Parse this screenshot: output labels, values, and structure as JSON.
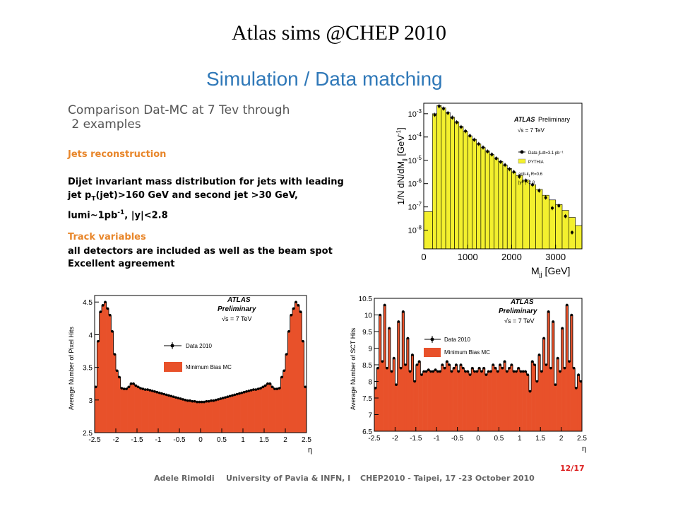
{
  "page_title": "Atlas sims @CHEP 2010",
  "slide": {
    "heading": "Simulation / Data matching",
    "intro_line1": "Comparison Dat-MC at 7 Tev through",
    "intro_line2": " 2 examples",
    "jets_title": "Jets reconstruction",
    "jets_line1": "Dijet invariant mass distribution for jets with leading",
    "jets_line2": "jet p",
    "jets_line2_sub": "T",
    "jets_line2_rest": "(jet)>160 GeV and second jet >30 GeV,",
    "jets_line3": "lumi~1pb",
    "jets_line3_sup": "-1",
    "jets_line3_rest": ", |y|<2.8",
    "track_title": "Track variables",
    "track_line1": "all detectors are included as well as the beam spot",
    "track_line2": "Excellent agreement"
  },
  "footer": {
    "author": "Adele Rimoldi",
    "affiliation": "University of Pavia & INFN, I",
    "event": "CHEP2010 - Taipei, 17 -23 October 2010",
    "page": "12/17"
  },
  "colors": {
    "heading": "#2f78b8",
    "orange_titles": "#e8862a",
    "yellow_fill": "#f3f02e",
    "red_fill": "#e8512a",
    "page_number": "#dd2222"
  },
  "chart_data": [
    {
      "type": "bar",
      "id": "mjj",
      "xlabel": "M",
      "xlabel_sub": "jj",
      "xlabel_unit": " [GeV]",
      "ylabel": "1/N dN/dM",
      "ylabel_sub": "jj",
      "ylabel_unit": " [GeV",
      "ylabel_sup": "-1",
      "ylabel_end": "]",
      "yscale": "log",
      "xlim": [
        0,
        3600
      ],
      "ylim_exp": [
        -8.8,
        -2.55
      ],
      "xticks": [
        0,
        1000,
        2000,
        3000
      ],
      "xtick_labels": [
        "0",
        "1000",
        "2000",
        "3000"
      ],
      "yticks": [
        -3,
        -4,
        -5,
        -6,
        -7,
        -8
      ],
      "ytick_base": "10",
      "ytick_exps": [
        "-3",
        "-4",
        "-5",
        "-6",
        "-7",
        "-8"
      ],
      "annotation_atlas": "ATLAS",
      "annotation_prelim": "Preliminary",
      "annotation_sqrt": "√s = 7 TeV",
      "legend": [
        "Data ∫Ldt=3.1 pb⁻¹",
        "PYTHIA"
      ],
      "annotation_jets": "anti-k",
      "annotation_jets_sub": "t",
      "annotation_jets_rest": " R=0.6",
      "annotation_y": "|y",
      "annotation_y_sup": "jet",
      "annotation_y_rest": "|<2.8",
      "bins_x": [
        0,
        200,
        300,
        400,
        500,
        600,
        700,
        800,
        900,
        1000,
        1100,
        1200,
        1300,
        1400,
        1500,
        1600,
        1700,
        1800,
        1900,
        2000,
        2100,
        2250,
        2400,
        2550,
        2700,
        2850,
        3000,
        3150,
        3300,
        3450,
        3600
      ],
      "mc_log10": [
        -7.2,
        -3.0,
        -2.65,
        -2.75,
        -2.95,
        -3.15,
        -3.35,
        -3.55,
        -3.75,
        -3.95,
        -4.1,
        -4.3,
        -4.45,
        -4.6,
        -4.75,
        -4.9,
        -5.05,
        -5.2,
        -5.35,
        -5.5,
        -5.65,
        -5.85,
        -6.05,
        -6.25,
        -6.5,
        -6.7,
        -6.9,
        -7.15,
        -7.45,
        -7.8
      ],
      "data_x": [
        250,
        350,
        450,
        550,
        650,
        750,
        850,
        950,
        1050,
        1150,
        1250,
        1350,
        1450,
        1550,
        1650,
        1750,
        1850,
        1950,
        2050,
        2175,
        2325,
        2475,
        2625,
        2775,
        2925,
        3075,
        3225,
        3375
      ],
      "data_log10": [
        -3.05,
        -2.68,
        -2.78,
        -2.97,
        -3.17,
        -3.37,
        -3.57,
        -3.75,
        -3.95,
        -4.12,
        -4.3,
        -4.45,
        -4.62,
        -4.75,
        -4.92,
        -5.07,
        -5.2,
        -5.38,
        -5.5,
        -5.7,
        -5.87,
        -6.05,
        -6.3,
        -6.6,
        -7.05,
        -6.95,
        -7.4,
        -8.1
      ]
    },
    {
      "type": "bar",
      "id": "pixel",
      "xlabel": "η",
      "ylabel": "Average Number of Pixel Hits",
      "xlim": [
        -2.5,
        2.5
      ],
      "ylim": [
        2.5,
        4.6
      ],
      "xticks": [
        -2.5,
        -2,
        -1.5,
        -1,
        -0.5,
        0,
        0.5,
        1,
        1.5,
        2,
        2.5
      ],
      "xtick_labels": [
        "-2.5",
        "-2",
        "-1.5",
        "-1",
        "-0.5",
        "0",
        "0.5",
        "1",
        "1.5",
        "2",
        "2.5"
      ],
      "yticks": [
        2.5,
        3,
        3.5,
        4,
        4.5
      ],
      "ytick_labels": [
        "2.5",
        "3",
        "3.5",
        "4",
        "4.5"
      ],
      "annotation_atlas": "ATLAS",
      "annotation_prelim": "Preliminary",
      "annotation_sqrt": "√s = 7 TeV",
      "legend": [
        "Data 2010",
        "Minimum Bias MC"
      ],
      "mc_values": [
        3.2,
        3.9,
        4.35,
        4.45,
        4.5,
        4.4,
        4.3,
        4.05,
        3.7,
        3.45,
        3.35,
        3.18,
        3.17,
        3.17,
        3.2,
        3.25,
        3.25,
        3.22,
        3.2,
        3.18,
        3.17,
        3.16,
        3.16,
        3.15,
        3.14,
        3.13,
        3.12,
        3.11,
        3.1,
        3.09,
        3.08,
        3.07,
        3.06,
        3.05,
        3.04,
        3.03,
        3.02,
        3.01,
        3.0,
        2.99,
        2.99,
        2.98,
        2.98,
        2.97,
        2.97,
        2.97,
        2.97,
        2.98,
        2.98,
        2.99,
        2.99,
        3.0,
        3.01,
        3.02,
        3.03,
        3.04,
        3.05,
        3.06,
        3.07,
        3.08,
        3.09,
        3.1,
        3.11,
        3.12,
        3.13,
        3.14,
        3.15,
        3.16,
        3.16,
        3.17,
        3.18,
        3.2,
        3.22,
        3.25,
        3.25,
        3.2,
        3.17,
        3.17,
        3.18,
        3.35,
        3.45,
        3.7,
        4.05,
        4.3,
        4.4,
        4.5,
        4.45,
        4.35,
        3.9,
        3.2
      ]
    },
    {
      "type": "bar",
      "id": "sct",
      "xlabel": "η",
      "ylabel": "Average Number of SCT Hits",
      "xlim": [
        -2.5,
        2.5
      ],
      "ylim": [
        6.5,
        10.5
      ],
      "xticks": [
        -2.5,
        -2,
        -1.5,
        -1,
        -0.5,
        0,
        0.5,
        1,
        1.5,
        2,
        2.5
      ],
      "xtick_labels": [
        "-2.5",
        "-2",
        "-1.5",
        "-1",
        "-0.5",
        "0",
        "0.5",
        "1",
        "1.5",
        "2",
        "2.5"
      ],
      "yticks": [
        6.5,
        7,
        7.5,
        8,
        8.5,
        9,
        9.5,
        10,
        10.5
      ],
      "ytick_labels": [
        "6.5",
        "7",
        "7.5",
        "8",
        "8.5",
        "9",
        "9.5",
        "10",
        "10.5"
      ],
      "annotation_atlas": "ATLAS",
      "annotation_prelim": "Preliminary",
      "annotation_sqrt": "√s = 7 TeV",
      "legend": [
        "Data 2010",
        "Minimum Bias MC"
      ],
      "mc_values": [
        7.8,
        8.4,
        10.0,
        8.6,
        10.3,
        8.4,
        9.6,
        8.3,
        8.7,
        7.9,
        9.8,
        8.4,
        10.1,
        8.5,
        9.3,
        8.3,
        8.8,
        8.0,
        8.5,
        8.6,
        8.2,
        8.3,
        8.3,
        8.35,
        8.3,
        8.3,
        8.35,
        8.3,
        8.3,
        8.5,
        8.4,
        8.6,
        8.5,
        8.3,
        8.4,
        8.5,
        8.3,
        8.5,
        8.4,
        8.3,
        8.3,
        8.2,
        8.4,
        8.3,
        8.3,
        8.4,
        8.3,
        8.4,
        8.2,
        8.3,
        8.3,
        8.5,
        8.4,
        8.3,
        8.5,
        8.4,
        8.6,
        8.3,
        8.4,
        8.5,
        8.3,
        8.3,
        8.4,
        8.3,
        8.3,
        8.3,
        8.2,
        7.7,
        8.6,
        8.5,
        8.0,
        8.8,
        8.3,
        9.3,
        8.5,
        10.1,
        8.4,
        9.8,
        7.9,
        8.7,
        8.3,
        9.6,
        8.4,
        10.3,
        8.6,
        10.0,
        8.4,
        7.8,
        8.2,
        8.0
      ]
    }
  ]
}
